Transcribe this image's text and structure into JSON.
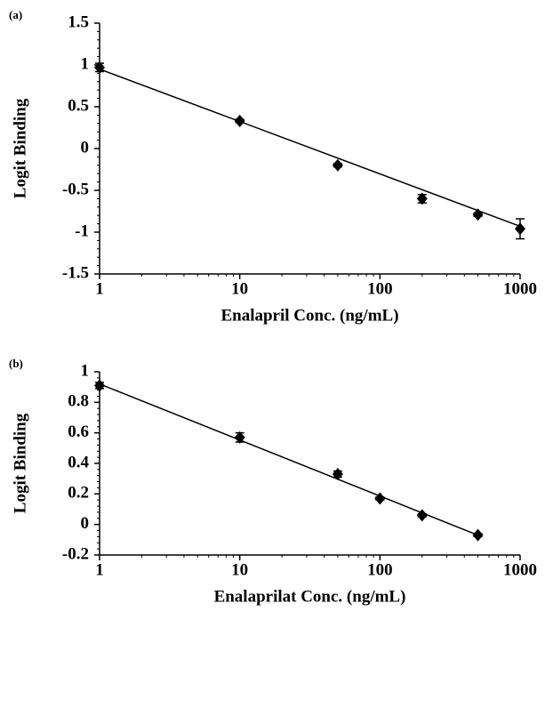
{
  "chart_data": [
    {
      "type": "scatter",
      "panel_label": "(a)",
      "xlabel": "Enalapril Conc. (ng/mL)",
      "ylabel": "Logit Binding",
      "log_x": true,
      "xlim": [
        1,
        1000
      ],
      "xticks": [
        1,
        10,
        100,
        1000
      ],
      "ylim": [
        -1.5,
        1.5
      ],
      "yticks": [
        -1.5,
        -1,
        -0.5,
        0,
        0.5,
        1,
        1.5
      ],
      "color": "#000000",
      "series": [
        {
          "x": [
            1,
            10,
            50,
            200,
            500,
            1000
          ],
          "values": [
            0.97,
            0.33,
            -0.2,
            -0.6,
            -0.79,
            -0.96
          ],
          "errors": [
            0.05,
            0.02,
            0.02,
            0.05,
            0.02,
            0.12
          ],
          "marker": "diamond"
        },
        {
          "x": [
            1,
            1000
          ],
          "values": [
            0.95,
            -0.93
          ],
          "marker": "line"
        }
      ]
    },
    {
      "type": "scatter",
      "panel_label": "(b)",
      "xlabel": "Enalaprilat Conc. (ng/mL)",
      "ylabel": "Logit Binding",
      "log_x": true,
      "xlim": [
        1,
        1000
      ],
      "xticks": [
        1,
        10,
        100,
        1000
      ],
      "ylim": [
        -0.2,
        1
      ],
      "yticks": [
        -0.2,
        0,
        0.2,
        0.4,
        0.6,
        0.8,
        1
      ],
      "color": "#000000",
      "series": [
        {
          "x": [
            1,
            10,
            50,
            100,
            200,
            500
          ],
          "values": [
            0.91,
            0.57,
            0.33,
            0.17,
            0.06,
            -0.07
          ],
          "errors": [
            0.02,
            0.03,
            0.02,
            0.01,
            0.01,
            0.01
          ],
          "marker": "diamond"
        },
        {
          "x": [
            1,
            500
          ],
          "values": [
            0.92,
            -0.07
          ],
          "marker": "line"
        }
      ]
    }
  ]
}
